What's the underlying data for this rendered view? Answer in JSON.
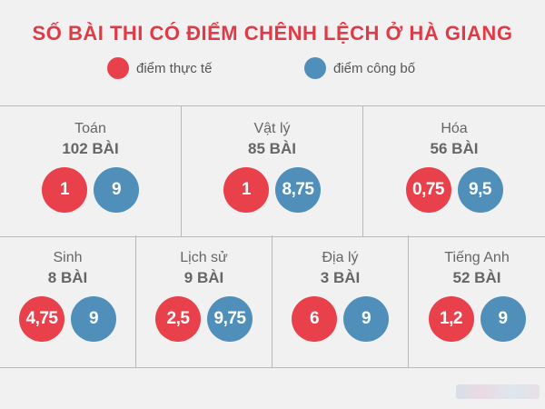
{
  "title": "SỐ BÀI THI CÓ ĐIỂM CHÊNH LỆCH Ở HÀ GIANG",
  "legend": {
    "actual_label": "điểm thực tế",
    "published_label": "điểm công bố"
  },
  "colors": {
    "title": "#e03a47",
    "actual": "#e8414b",
    "published": "#4f8fba",
    "background": "#f1f1f1",
    "border": "#b9b9b9",
    "text": "#666666"
  },
  "subjects": [
    {
      "name": "Toán",
      "count": "102 BÀI",
      "actual": "1",
      "published": "9"
    },
    {
      "name": "Vật lý",
      "count": "85 BÀI",
      "actual": "1",
      "published": "8,75"
    },
    {
      "name": "Hóa",
      "count": "56 BÀI",
      "actual": "0,75",
      "published": "9,5"
    },
    {
      "name": "Sinh",
      "count": "8 BÀI",
      "actual": "4,75",
      "published": "9"
    },
    {
      "name": "Lịch sử",
      "count": "9 BÀI",
      "actual": "2,5",
      "published": "9,75"
    },
    {
      "name": "Địa lý",
      "count": "3 BÀI",
      "actual": "6",
      "published": "9"
    },
    {
      "name": "Tiếng Anh",
      "count": "52 BÀI",
      "actual": "1,2",
      "published": "9"
    }
  ]
}
